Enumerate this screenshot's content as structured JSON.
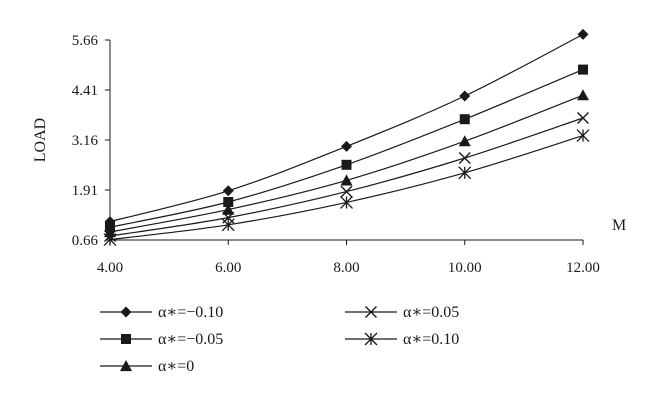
{
  "chart_data": {
    "type": "line",
    "xlabel": "M",
    "ylabel": "LOAD",
    "x": [
      4.0,
      6.0,
      8.0,
      10.0,
      12.0
    ],
    "x_ticks": [
      "4.00",
      "6.00",
      "8.00",
      "10.00",
      "12.00"
    ],
    "y_ticks": [
      "0.66",
      "1.91",
      "3.16",
      "4.41",
      "5.66"
    ],
    "xlim": [
      4.0,
      12.0
    ],
    "ylim": [
      0.66,
      5.66
    ],
    "grid": false,
    "legend_position": "bottom",
    "series": [
      {
        "name": "α∗=−0.10",
        "marker": "diamond",
        "values": [
          1.12,
          1.89,
          3.0,
          4.26,
          5.8
        ]
      },
      {
        "name": "α∗=−0.05",
        "marker": "square",
        "values": [
          0.98,
          1.61,
          2.54,
          3.68,
          4.92
        ]
      },
      {
        "name": "α∗=0",
        "marker": "triangle",
        "values": [
          0.86,
          1.42,
          2.15,
          3.13,
          4.28
        ]
      },
      {
        "name": "α∗=0.05",
        "marker": "x",
        "values": [
          0.76,
          1.22,
          1.87,
          2.71,
          3.71
        ]
      },
      {
        "name": "α∗=0.10",
        "marker": "star",
        "values": [
          0.67,
          1.04,
          1.6,
          2.34,
          3.27
        ]
      }
    ]
  }
}
